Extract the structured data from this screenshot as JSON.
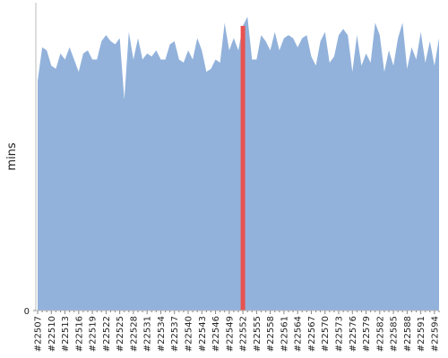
{
  "chart_data": {
    "type": "area",
    "y_label": "mins",
    "categories": [
      "#22507",
      null,
      null,
      "#22510",
      null,
      null,
      "#22513",
      null,
      null,
      "#22516",
      null,
      null,
      "#22519",
      null,
      null,
      "#22522",
      null,
      null,
      "#22525",
      null,
      null,
      "#22528",
      null,
      null,
      "#22531",
      null,
      null,
      "#22534",
      null,
      null,
      "#22537",
      null,
      null,
      "#22540",
      null,
      null,
      "#22543",
      null,
      null,
      "#22546",
      null,
      null,
      "#22549",
      null,
      null,
      "#22552",
      null,
      null,
      "#22555",
      null,
      null,
      "#22558",
      null,
      null,
      "#22561",
      null,
      null,
      "#22564",
      null,
      null,
      "#22567",
      null,
      null,
      "#22570",
      null,
      null,
      "#22573",
      null,
      null,
      "#22576",
      null,
      null,
      "#22579",
      null,
      null,
      "#22582",
      null,
      null,
      "#22585",
      null,
      null,
      "#22588",
      null,
      null,
      "#22591",
      null,
      null,
      "#22594",
      null
    ],
    "values": [
      75,
      86,
      85,
      80,
      79,
      84,
      82,
      86,
      82,
      78,
      84,
      85,
      82,
      82,
      88,
      90,
      88,
      87,
      89,
      69,
      91,
      82,
      89,
      82,
      84,
      83,
      85,
      82,
      82,
      87,
      88,
      82,
      81,
      85,
      82,
      89,
      85,
      78,
      79,
      82,
      81,
      94,
      85,
      89,
      85,
      93,
      96,
      82,
      82,
      90,
      88,
      85,
      91,
      85,
      89,
      90,
      89,
      86,
      89,
      90,
      83,
      80,
      88,
      91,
      81,
      83,
      90,
      92,
      90,
      78,
      90,
      80,
      84,
      81,
      94,
      90,
      78,
      85,
      80,
      89,
      94,
      79,
      86,
      82,
      91,
      81,
      88,
      80,
      89
    ],
    "color": "#92b2db",
    "highlight_index": 45,
    "highlight_color": "#e8534f",
    "ylim": [
      0,
      100
    ],
    "yticks": [
      0
    ]
  }
}
